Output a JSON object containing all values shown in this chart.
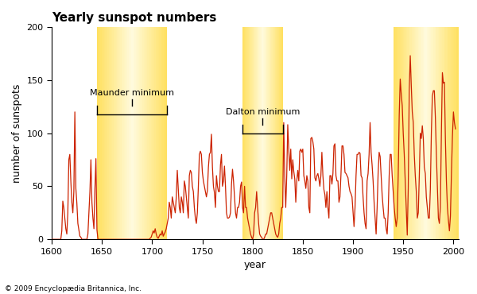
{
  "title": "Yearly sunspot numbers",
  "xlabel": "year",
  "ylabel": "number of sunspots",
  "xlim": [
    1600,
    2005
  ],
  "ylim": [
    0,
    200
  ],
  "yticks": [
    0,
    50,
    100,
    150,
    200
  ],
  "xticks": [
    1600,
    1650,
    1700,
    1750,
    1800,
    1850,
    1900,
    1950,
    2000
  ],
  "line_color": "#cc2200",
  "background_color": "#ffffff",
  "copyright": "© 2009 Encyclopædia Britannica, Inc.",
  "maunder_x1": 1645,
  "maunder_x2": 1715,
  "dalton_x1": 1790,
  "dalton_x2": 1830,
  "modern_x1": 1940,
  "modern_x2": 2005,
  "highlight_outer": "#ffe060",
  "highlight_inner": "#fffbe0",
  "sunspot_data": [
    [
      1600,
      0
    ],
    [
      1601,
      0
    ],
    [
      1602,
      0
    ],
    [
      1603,
      0
    ],
    [
      1604,
      0
    ],
    [
      1605,
      0
    ],
    [
      1606,
      0
    ],
    [
      1607,
      0
    ],
    [
      1608,
      0
    ],
    [
      1609,
      0
    ],
    [
      1610,
      8
    ],
    [
      1611,
      36
    ],
    [
      1612,
      30
    ],
    [
      1613,
      20
    ],
    [
      1614,
      10
    ],
    [
      1615,
      5
    ],
    [
      1616,
      25
    ],
    [
      1617,
      75
    ],
    [
      1618,
      80
    ],
    [
      1619,
      55
    ],
    [
      1620,
      35
    ],
    [
      1621,
      25
    ],
    [
      1622,
      45
    ],
    [
      1623,
      120
    ],
    [
      1624,
      48
    ],
    [
      1625,
      34
    ],
    [
      1626,
      15
    ],
    [
      1627,
      9
    ],
    [
      1628,
      3
    ],
    [
      1629,
      2
    ],
    [
      1630,
      0
    ],
    [
      1631,
      0
    ],
    [
      1632,
      0
    ],
    [
      1633,
      0
    ],
    [
      1634,
      0
    ],
    [
      1635,
      0
    ],
    [
      1636,
      5
    ],
    [
      1637,
      25
    ],
    [
      1638,
      45
    ],
    [
      1639,
      75
    ],
    [
      1640,
      35
    ],
    [
      1641,
      20
    ],
    [
      1642,
      10
    ],
    [
      1643,
      48
    ],
    [
      1644,
      76
    ],
    [
      1645,
      9
    ],
    [
      1646,
      0
    ],
    [
      1647,
      0
    ],
    [
      1648,
      0
    ],
    [
      1649,
      0
    ],
    [
      1650,
      0
    ],
    [
      1651,
      0
    ],
    [
      1652,
      0
    ],
    [
      1653,
      0
    ],
    [
      1654,
      0
    ],
    [
      1655,
      0
    ],
    [
      1656,
      0
    ],
    [
      1657,
      0
    ],
    [
      1658,
      0
    ],
    [
      1659,
      0
    ],
    [
      1660,
      0
    ],
    [
      1661,
      0
    ],
    [
      1662,
      0
    ],
    [
      1663,
      0
    ],
    [
      1664,
      0
    ],
    [
      1665,
      0
    ],
    [
      1666,
      0
    ],
    [
      1667,
      0
    ],
    [
      1668,
      0
    ],
    [
      1669,
      0
    ],
    [
      1670,
      0
    ],
    [
      1671,
      0
    ],
    [
      1672,
      0
    ],
    [
      1673,
      0
    ],
    [
      1674,
      0
    ],
    [
      1675,
      0
    ],
    [
      1676,
      0
    ],
    [
      1677,
      0
    ],
    [
      1678,
      0
    ],
    [
      1679,
      0
    ],
    [
      1680,
      0
    ],
    [
      1681,
      0
    ],
    [
      1682,
      0
    ],
    [
      1683,
      0
    ],
    [
      1684,
      0
    ],
    [
      1685,
      0
    ],
    [
      1686,
      0
    ],
    [
      1687,
      0
    ],
    [
      1688,
      0
    ],
    [
      1689,
      0
    ],
    [
      1690,
      0
    ],
    [
      1691,
      0
    ],
    [
      1692,
      0
    ],
    [
      1693,
      0
    ],
    [
      1694,
      0
    ],
    [
      1695,
      0
    ],
    [
      1696,
      0
    ],
    [
      1697,
      0
    ],
    [
      1698,
      1
    ],
    [
      1699,
      2
    ],
    [
      1700,
      5
    ],
    [
      1701,
      8
    ],
    [
      1702,
      6
    ],
    [
      1703,
      10
    ],
    [
      1704,
      5
    ],
    [
      1705,
      2
    ],
    [
      1706,
      1
    ],
    [
      1707,
      3
    ],
    [
      1708,
      5
    ],
    [
      1709,
      4
    ],
    [
      1710,
      8
    ],
    [
      1711,
      3
    ],
    [
      1712,
      5
    ],
    [
      1713,
      7
    ],
    [
      1714,
      10
    ],
    [
      1715,
      15
    ],
    [
      1716,
      20
    ],
    [
      1717,
      35
    ],
    [
      1718,
      30
    ],
    [
      1719,
      20
    ],
    [
      1720,
      40
    ],
    [
      1721,
      35
    ],
    [
      1722,
      30
    ],
    [
      1723,
      25
    ],
    [
      1724,
      40
    ],
    [
      1725,
      65
    ],
    [
      1726,
      48
    ],
    [
      1727,
      30
    ],
    [
      1728,
      25
    ],
    [
      1729,
      40
    ],
    [
      1730,
      35
    ],
    [
      1731,
      25
    ],
    [
      1732,
      55
    ],
    [
      1733,
      50
    ],
    [
      1734,
      40
    ],
    [
      1735,
      30
    ],
    [
      1736,
      20
    ],
    [
      1737,
      60
    ],
    [
      1738,
      65
    ],
    [
      1739,
      63
    ],
    [
      1740,
      50
    ],
    [
      1741,
      45
    ],
    [
      1742,
      30
    ],
    [
      1743,
      20
    ],
    [
      1744,
      15
    ],
    [
      1745,
      25
    ],
    [
      1746,
      50
    ],
    [
      1747,
      80
    ],
    [
      1748,
      83
    ],
    [
      1749,
      80
    ],
    [
      1750,
      63
    ],
    [
      1751,
      55
    ],
    [
      1752,
      50
    ],
    [
      1753,
      45
    ],
    [
      1754,
      40
    ],
    [
      1755,
      46
    ],
    [
      1756,
      68
    ],
    [
      1757,
      80
    ],
    [
      1758,
      82
    ],
    [
      1759,
      99
    ],
    [
      1760,
      68
    ],
    [
      1761,
      50
    ],
    [
      1762,
      44
    ],
    [
      1763,
      30
    ],
    [
      1764,
      60
    ],
    [
      1765,
      50
    ],
    [
      1766,
      45
    ],
    [
      1767,
      45
    ],
    [
      1768,
      70
    ],
    [
      1769,
      80
    ],
    [
      1770,
      50
    ],
    [
      1771,
      55
    ],
    [
      1772,
      69
    ],
    [
      1773,
      50
    ],
    [
      1774,
      25
    ],
    [
      1775,
      20
    ],
    [
      1776,
      20
    ],
    [
      1777,
      21
    ],
    [
      1778,
      25
    ],
    [
      1779,
      52
    ],
    [
      1780,
      66
    ],
    [
      1781,
      55
    ],
    [
      1782,
      40
    ],
    [
      1783,
      25
    ],
    [
      1784,
      20
    ],
    [
      1785,
      30
    ],
    [
      1786,
      30
    ],
    [
      1787,
      35
    ],
    [
      1788,
      50
    ],
    [
      1789,
      54
    ],
    [
      1790,
      30
    ],
    [
      1791,
      25
    ],
    [
      1792,
      50
    ],
    [
      1793,
      30
    ],
    [
      1794,
      30
    ],
    [
      1795,
      20
    ],
    [
      1796,
      15
    ],
    [
      1797,
      10
    ],
    [
      1798,
      5
    ],
    [
      1799,
      2
    ],
    [
      1800,
      0
    ],
    [
      1801,
      5
    ],
    [
      1802,
      25
    ],
    [
      1803,
      30
    ],
    [
      1804,
      45
    ],
    [
      1805,
      30
    ],
    [
      1806,
      15
    ],
    [
      1807,
      5
    ],
    [
      1808,
      3
    ],
    [
      1809,
      2
    ],
    [
      1810,
      0
    ],
    [
      1811,
      0
    ],
    [
      1812,
      2
    ],
    [
      1813,
      5
    ],
    [
      1814,
      5
    ],
    [
      1815,
      10
    ],
    [
      1816,
      15
    ],
    [
      1817,
      20
    ],
    [
      1818,
      25
    ],
    [
      1819,
      25
    ],
    [
      1820,
      20
    ],
    [
      1821,
      15
    ],
    [
      1822,
      10
    ],
    [
      1823,
      5
    ],
    [
      1824,
      3
    ],
    [
      1825,
      2
    ],
    [
      1826,
      5
    ],
    [
      1827,
      15
    ],
    [
      1828,
      20
    ],
    [
      1829,
      30
    ],
    [
      1830,
      30
    ],
    [
      1831,
      110
    ],
    [
      1832,
      60
    ],
    [
      1833,
      30
    ],
    [
      1834,
      60
    ],
    [
      1835,
      108
    ],
    [
      1836,
      85
    ],
    [
      1837,
      65
    ],
    [
      1838,
      85
    ],
    [
      1839,
      57
    ],
    [
      1840,
      75
    ],
    [
      1841,
      64
    ],
    [
      1842,
      57
    ],
    [
      1843,
      35
    ],
    [
      1844,
      55
    ],
    [
      1845,
      65
    ],
    [
      1846,
      55
    ],
    [
      1847,
      83
    ],
    [
      1848,
      85
    ],
    [
      1849,
      82
    ],
    [
      1850,
      85
    ],
    [
      1851,
      60
    ],
    [
      1852,
      55
    ],
    [
      1853,
      48
    ],
    [
      1854,
      60
    ],
    [
      1855,
      55
    ],
    [
      1856,
      30
    ],
    [
      1857,
      25
    ],
    [
      1858,
      95
    ],
    [
      1859,
      96
    ],
    [
      1860,
      92
    ],
    [
      1861,
      85
    ],
    [
      1862,
      58
    ],
    [
      1863,
      55
    ],
    [
      1864,
      60
    ],
    [
      1865,
      62
    ],
    [
      1866,
      57
    ],
    [
      1867,
      50
    ],
    [
      1868,
      60
    ],
    [
      1869,
      82
    ],
    [
      1870,
      60
    ],
    [
      1871,
      47
    ],
    [
      1872,
      42
    ],
    [
      1873,
      30
    ],
    [
      1874,
      45
    ],
    [
      1875,
      30
    ],
    [
      1876,
      20
    ],
    [
      1877,
      60
    ],
    [
      1878,
      60
    ],
    [
      1879,
      52
    ],
    [
      1880,
      62
    ],
    [
      1881,
      88
    ],
    [
      1882,
      90
    ],
    [
      1883,
      60
    ],
    [
      1884,
      55
    ],
    [
      1885,
      55
    ],
    [
      1886,
      35
    ],
    [
      1887,
      40
    ],
    [
      1888,
      61
    ],
    [
      1889,
      88
    ],
    [
      1890,
      88
    ],
    [
      1891,
      80
    ],
    [
      1892,
      63
    ],
    [
      1893,
      62
    ],
    [
      1894,
      60
    ],
    [
      1895,
      58
    ],
    [
      1896,
      50
    ],
    [
      1897,
      45
    ],
    [
      1898,
      43
    ],
    [
      1899,
      40
    ],
    [
      1900,
      26
    ],
    [
      1901,
      12
    ],
    [
      1902,
      30
    ],
    [
      1903,
      60
    ],
    [
      1904,
      80
    ],
    [
      1905,
      80
    ],
    [
      1906,
      82
    ],
    [
      1907,
      81
    ],
    [
      1908,
      60
    ],
    [
      1909,
      58
    ],
    [
      1910,
      40
    ],
    [
      1911,
      25
    ],
    [
      1912,
      15
    ],
    [
      1913,
      10
    ],
    [
      1914,
      55
    ],
    [
      1915,
      62
    ],
    [
      1916,
      80
    ],
    [
      1917,
      110
    ],
    [
      1918,
      82
    ],
    [
      1919,
      70
    ],
    [
      1920,
      55
    ],
    [
      1921,
      35
    ],
    [
      1922,
      20
    ],
    [
      1923,
      5
    ],
    [
      1924,
      30
    ],
    [
      1925,
      62
    ],
    [
      1926,
      82
    ],
    [
      1927,
      78
    ],
    [
      1928,
      60
    ],
    [
      1929,
      42
    ],
    [
      1930,
      30
    ],
    [
      1931,
      20
    ],
    [
      1932,
      20
    ],
    [
      1933,
      10
    ],
    [
      1934,
      5
    ],
    [
      1935,
      25
    ],
    [
      1936,
      60
    ],
    [
      1937,
      80
    ],
    [
      1938,
      80
    ],
    [
      1939,
      60
    ],
    [
      1940,
      45
    ],
    [
      1941,
      30
    ],
    [
      1942,
      20
    ],
    [
      1943,
      12
    ],
    [
      1944,
      20
    ],
    [
      1945,
      60
    ],
    [
      1946,
      117
    ],
    [
      1947,
      151
    ],
    [
      1948,
      137
    ],
    [
      1949,
      126
    ],
    [
      1950,
      100
    ],
    [
      1951,
      80
    ],
    [
      1952,
      55
    ],
    [
      1953,
      30
    ],
    [
      1954,
      4
    ],
    [
      1955,
      48
    ],
    [
      1956,
      141
    ],
    [
      1957,
      173
    ],
    [
      1958,
      145
    ],
    [
      1959,
      120
    ],
    [
      1960,
      110
    ],
    [
      1961,
      80
    ],
    [
      1962,
      60
    ],
    [
      1963,
      45
    ],
    [
      1964,
      20
    ],
    [
      1965,
      25
    ],
    [
      1966,
      60
    ],
    [
      1967,
      100
    ],
    [
      1968,
      95
    ],
    [
      1969,
      107
    ],
    [
      1970,
      95
    ],
    [
      1971,
      68
    ],
    [
      1972,
      62
    ],
    [
      1973,
      40
    ],
    [
      1974,
      30
    ],
    [
      1975,
      20
    ],
    [
      1976,
      20
    ],
    [
      1977,
      47
    ],
    [
      1978,
      100
    ],
    [
      1979,
      135
    ],
    [
      1980,
      140
    ],
    [
      1981,
      140
    ],
    [
      1982,
      115
    ],
    [
      1983,
      80
    ],
    [
      1984,
      50
    ],
    [
      1985,
      20
    ],
    [
      1986,
      15
    ],
    [
      1987,
      30
    ],
    [
      1988,
      100
    ],
    [
      1989,
      157
    ],
    [
      1990,
      147
    ],
    [
      1991,
      148
    ],
    [
      1992,
      94
    ],
    [
      1993,
      55
    ],
    [
      1994,
      30
    ],
    [
      1995,
      18
    ],
    [
      1996,
      8
    ],
    [
      1997,
      22
    ],
    [
      1998,
      62
    ],
    [
      1999,
      97
    ],
    [
      2000,
      120
    ],
    [
      2001,
      110
    ],
    [
      2002,
      104
    ]
  ]
}
